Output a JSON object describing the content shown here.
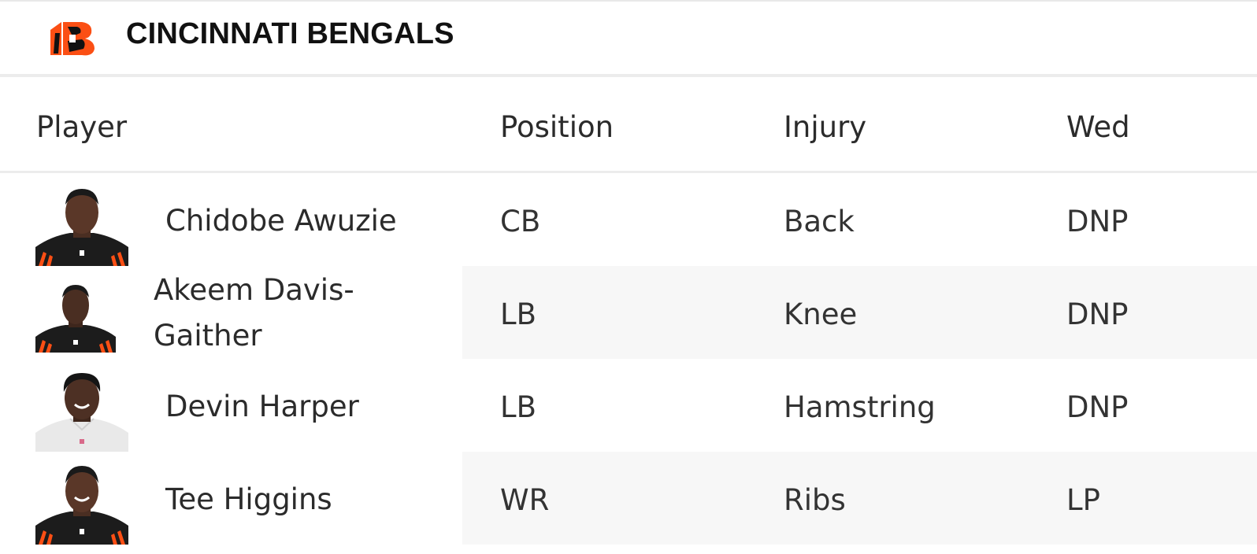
{
  "team": {
    "name": "CINCINNATI BENGALS",
    "logo_icon": "bengals-b-logo",
    "colors": {
      "orange": "#fb4f14",
      "black": "#111111"
    }
  },
  "table": {
    "headers": {
      "player": "Player",
      "position": "Position",
      "injury": "Injury",
      "wed": "Wed"
    },
    "rows": [
      {
        "player": "Chidobe Awuzie",
        "position": "CB",
        "injury": "Back",
        "wed": "DNP",
        "jersey": "black"
      },
      {
        "player": "Akeem Davis-Gaither",
        "player_line1": "Akeem Davis-",
        "player_line2": "Gaither",
        "position": "LB",
        "injury": "Knee",
        "wed": "DNP",
        "jersey": "black"
      },
      {
        "player": "Devin Harper",
        "position": "LB",
        "injury": "Hamstring",
        "wed": "DNP",
        "jersey": "white"
      },
      {
        "player": "Tee Higgins",
        "position": "WR",
        "injury": "Ribs",
        "wed": "LP",
        "jersey": "black"
      }
    ]
  }
}
